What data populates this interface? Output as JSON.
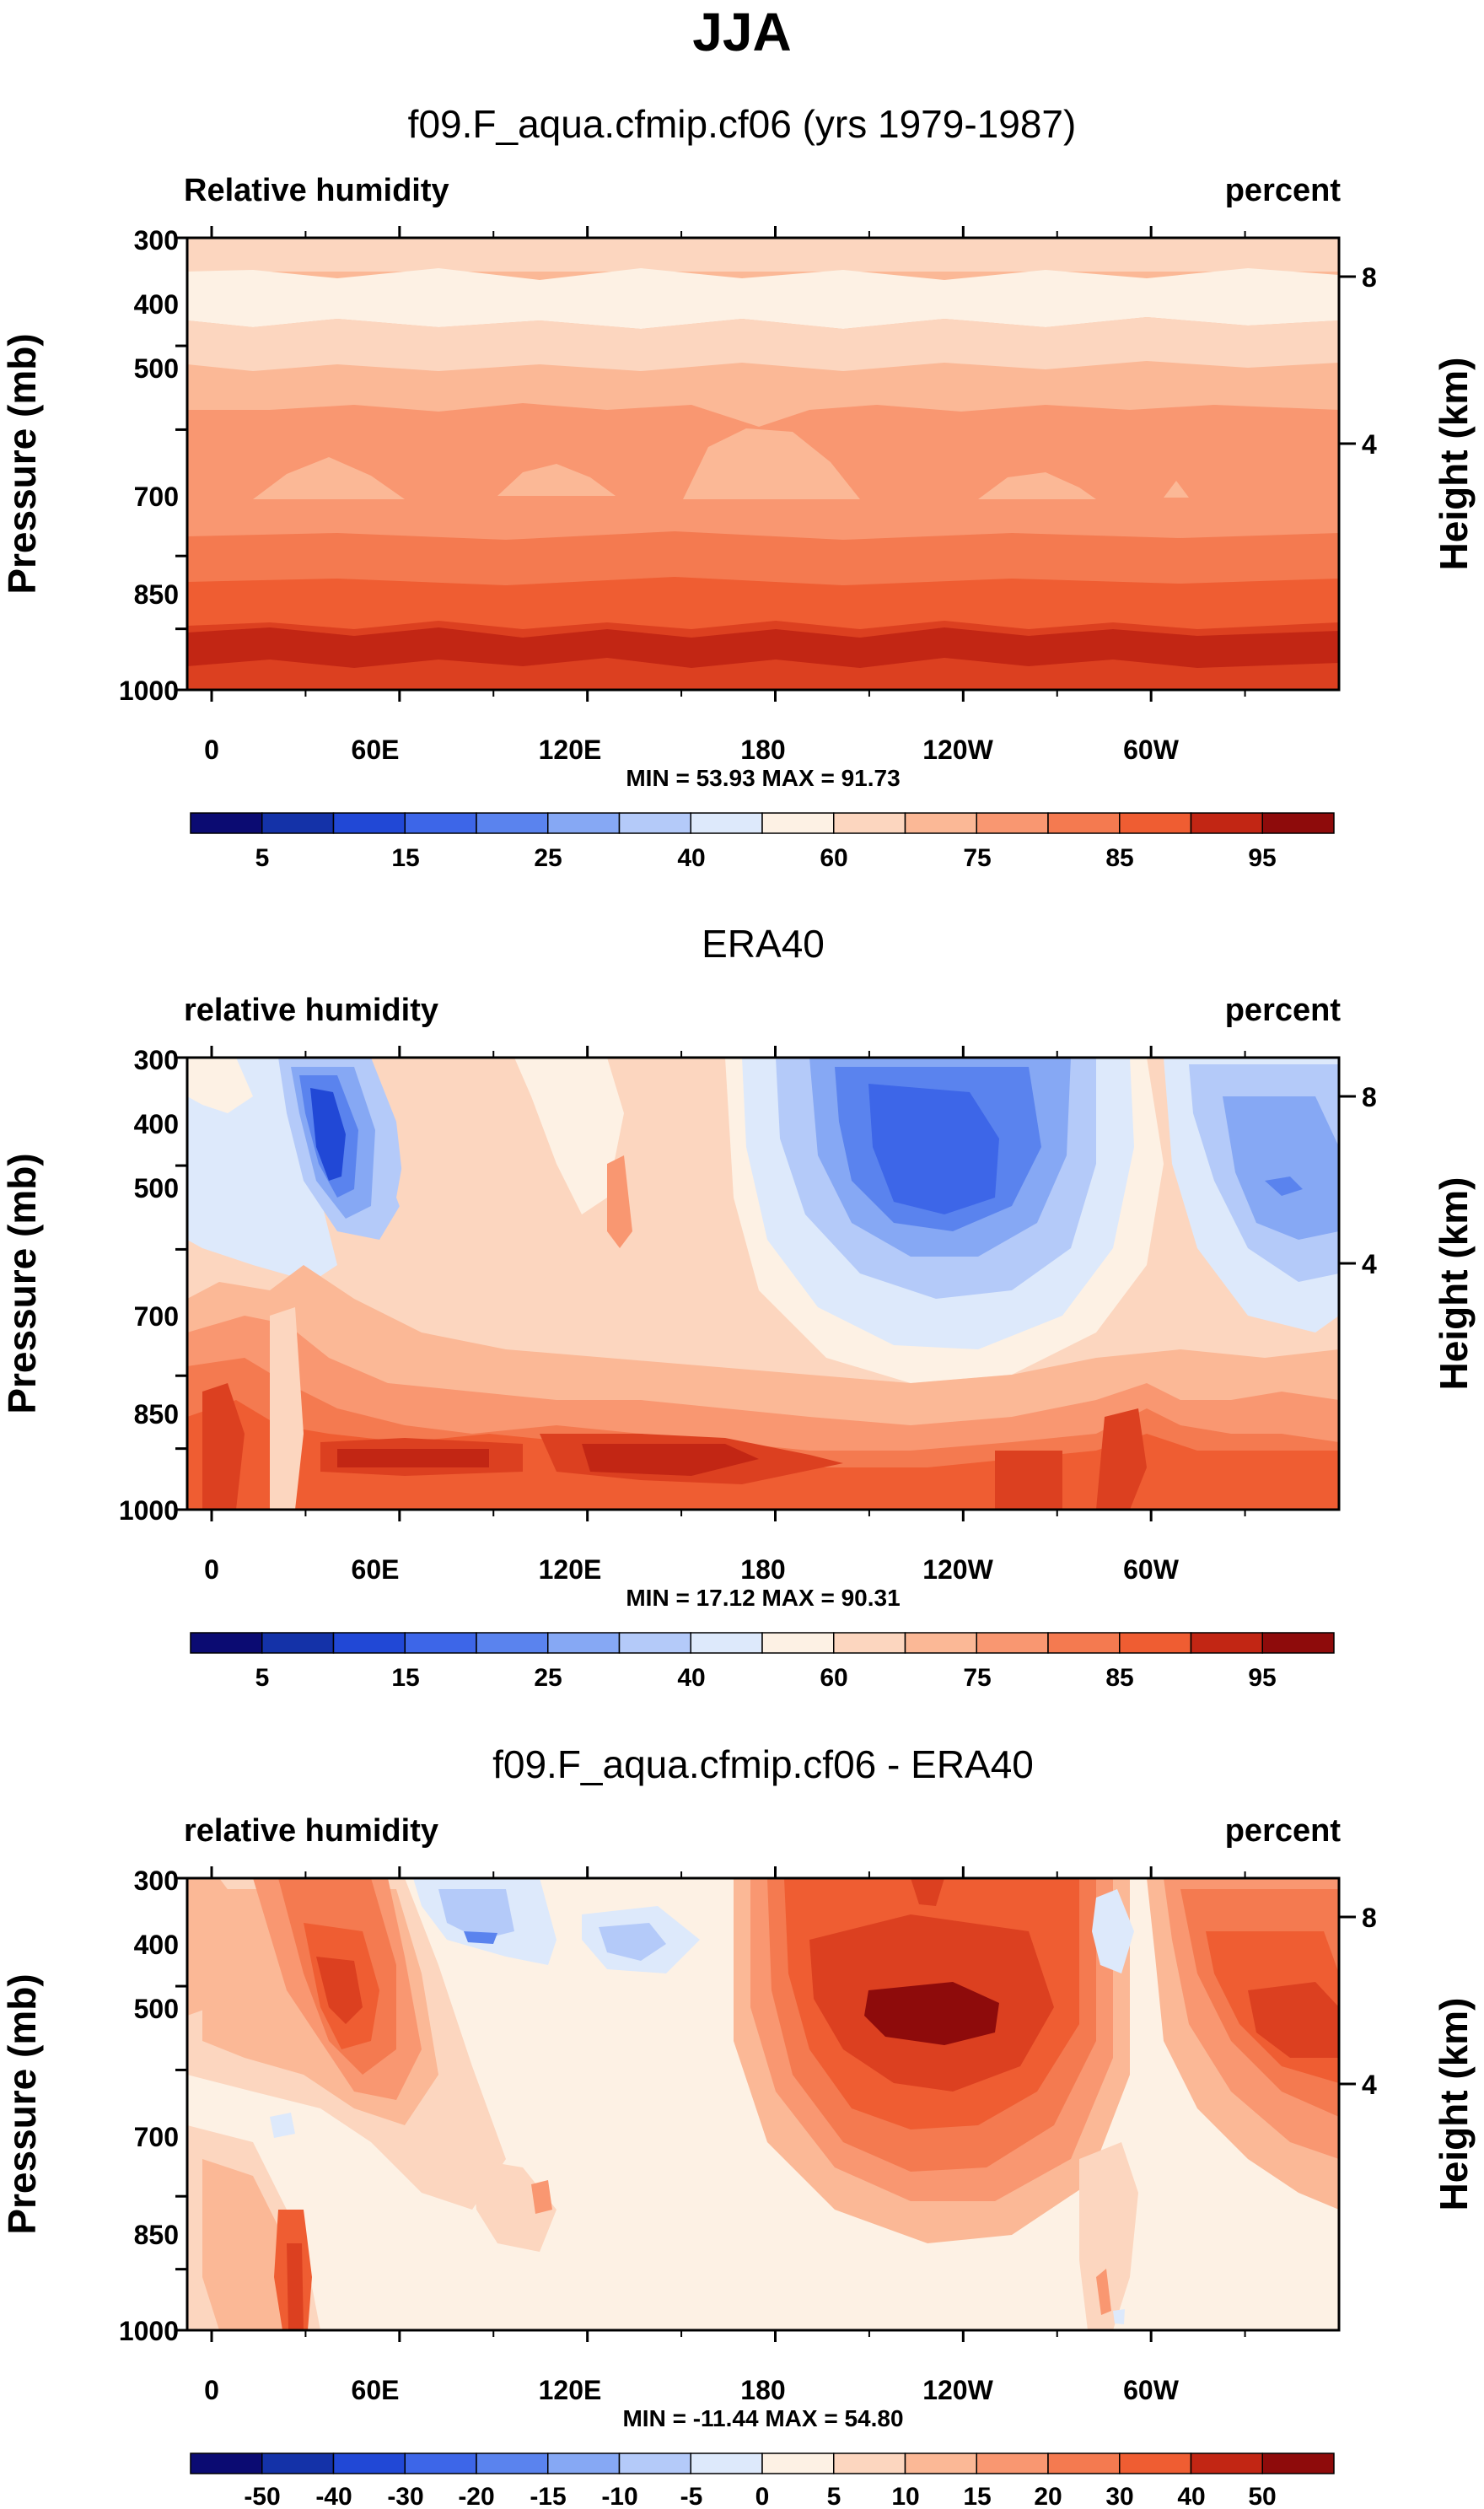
{
  "figure": {
    "title": "JJA",
    "palette_colors": [
      "#0b0b72",
      "#1432a8",
      "#2148d6",
      "#3d66e8",
      "#5a83ee",
      "#86a8f4",
      "#b4caf9",
      "#dde9fb",
      "#fdf1e4",
      "#fcd6bf",
      "#fbb896",
      "#f99771",
      "#f47a50",
      "#ef5d32",
      "#dc4020",
      "#c22614",
      "#8e0b0b"
    ]
  },
  "chart_data": [
    {
      "type": "heatmap",
      "title": "f09.F_aqua.cfmip.cf06 (yrs 1979-1987)",
      "left_label": "Relative humidity",
      "right_label": "percent",
      "ylabel": "Pressure (mb)",
      "y2label": "Height (km)",
      "x_ticks": [
        "0",
        "60E",
        "120E",
        "180",
        "120W",
        "60W"
      ],
      "y_ticks": [
        "300",
        "400",
        "500",
        "700",
        "850",
        "1000"
      ],
      "y2_ticks": [
        "8",
        "4"
      ],
      "stats": "MIN =  53.93  MAX =  91.73",
      "colorbar_labels": [
        "5",
        "15",
        "25",
        "40",
        "60",
        "75",
        "85",
        "95"
      ],
      "levels": [
        5,
        10,
        15,
        20,
        25,
        30,
        40,
        50,
        60,
        70,
        75,
        80,
        85,
        90,
        95
      ],
      "min": 53.93,
      "max": 91.73
    },
    {
      "type": "heatmap",
      "title": "ERA40",
      "left_label": "relative humidity",
      "right_label": "percent",
      "ylabel": "Pressure (mb)",
      "y2label": "Height (km)",
      "x_ticks": [
        "0",
        "60E",
        "120E",
        "180",
        "120W",
        "60W"
      ],
      "y_ticks": [
        "300",
        "400",
        "500",
        "700",
        "850",
        "1000"
      ],
      "y2_ticks": [
        "8",
        "4"
      ],
      "stats": "MIN =  17.12  MAX =  90.31",
      "colorbar_labels": [
        "5",
        "15",
        "25",
        "40",
        "60",
        "75",
        "85",
        "95"
      ],
      "levels": [
        5,
        10,
        15,
        20,
        25,
        30,
        40,
        50,
        60,
        70,
        75,
        80,
        85,
        90,
        95
      ],
      "min": 17.12,
      "max": 90.31
    },
    {
      "type": "heatmap",
      "title": "f09.F_aqua.cfmip.cf06 - ERA40",
      "left_label": "relative humidity",
      "right_label": "percent",
      "ylabel": "Pressure (mb)",
      "y2label": "Height (km)",
      "x_ticks": [
        "0",
        "60E",
        "120E",
        "180",
        "120W",
        "60W"
      ],
      "y_ticks": [
        "300",
        "400",
        "500",
        "700",
        "850",
        "1000"
      ],
      "y2_ticks": [
        "8",
        "4"
      ],
      "stats": "MIN = -11.44  MAX =  54.80",
      "colorbar_labels": [
        "-50",
        "-40",
        "-30",
        "-20",
        "-15",
        "-10",
        "-5",
        "0",
        "5",
        "10",
        "15",
        "20",
        "30",
        "40",
        "50"
      ],
      "levels": [
        -50,
        -40,
        -30,
        -20,
        -15,
        -10,
        -5,
        0,
        5,
        10,
        15,
        20,
        30,
        40,
        50
      ],
      "min": -11.44,
      "max": 54.8
    }
  ]
}
